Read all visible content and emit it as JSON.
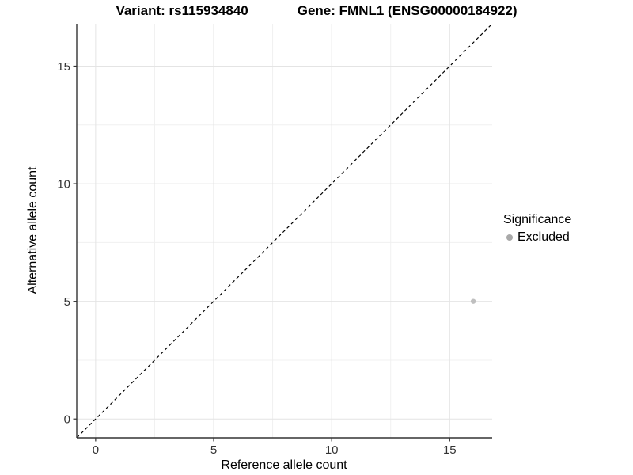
{
  "title": {
    "variant": "Variant: rs115934840",
    "gene": "Gene: FMNL1 (ENSG00000184922)"
  },
  "legend": {
    "title": "Significance",
    "items": [
      {
        "label": "Excluded",
        "marker_color": "#a9a9a9"
      }
    ],
    "position": "right"
  },
  "chart_data": {
    "type": "scatter",
    "title": "Variant: rs115934840    Gene: FMNL1 (ENSG00000184922)",
    "xlabel": "Reference allele count",
    "ylabel": "Alternative allele count",
    "xlim": [
      -0.8,
      16.8
    ],
    "ylim": [
      -0.8,
      16.8
    ],
    "xticks": [
      0,
      5,
      10,
      15
    ],
    "yticks": [
      0,
      5,
      10,
      15
    ],
    "minor_gridlines": [
      2.5,
      7.5,
      12.5
    ],
    "grid": true,
    "legend_position": "right",
    "series": [
      {
        "name": "Excluded",
        "color": "#bfbfbf",
        "points": [
          {
            "x": 16,
            "y": 5
          }
        ]
      }
    ],
    "reference_line": {
      "kind": "identity",
      "style": "dashed",
      "color": "#000000"
    },
    "style": {
      "background": "#ffffff",
      "major_grid_color": "#e4e4e4",
      "minor_grid_color": "#f0f0f0",
      "axis_line_color": "#333333",
      "tick_label_color": "#333333",
      "point_color": "#bfbfbf"
    }
  }
}
